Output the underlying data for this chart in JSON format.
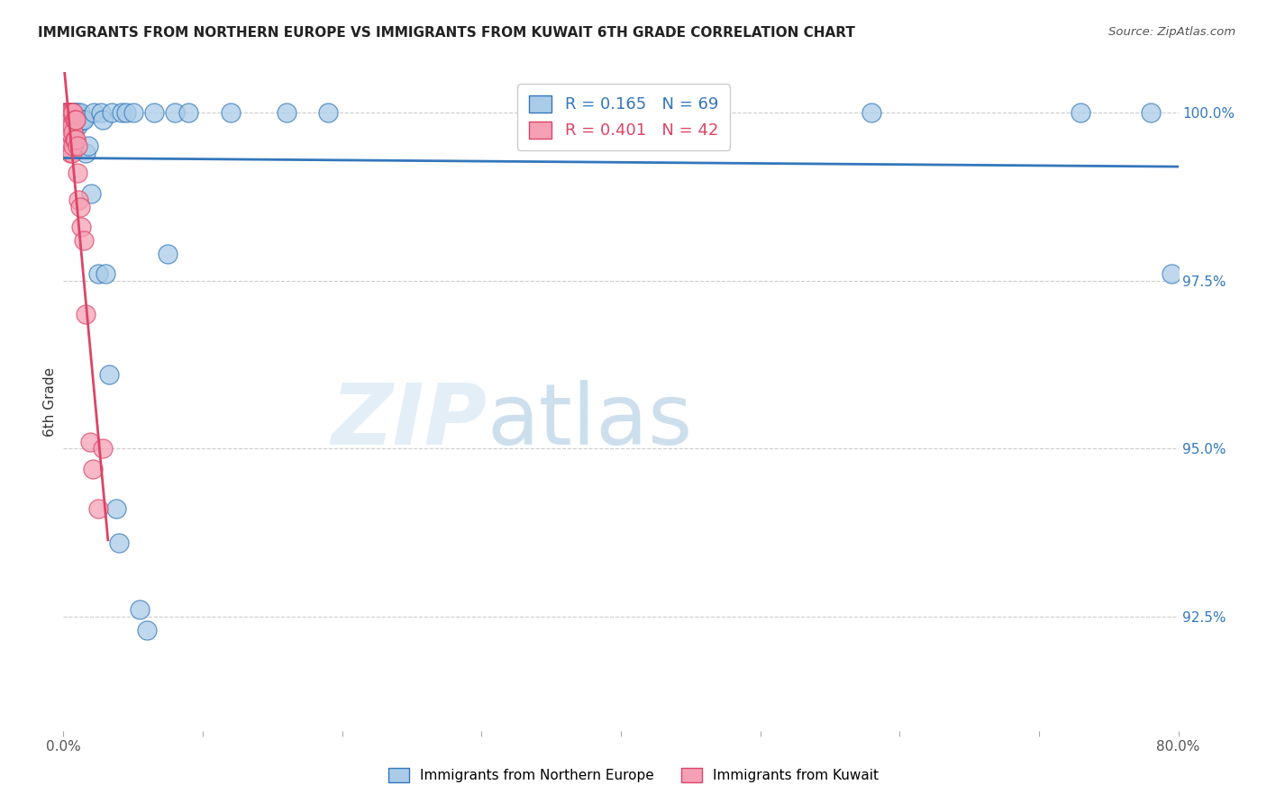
{
  "title": "IMMIGRANTS FROM NORTHERN EUROPE VS IMMIGRANTS FROM KUWAIT 6TH GRADE CORRELATION CHART",
  "source": "Source: ZipAtlas.com",
  "ylabel": "6th Grade",
  "legend_label_blue": "Immigrants from Northern Europe",
  "legend_label_pink": "Immigrants from Kuwait",
  "R_blue": 0.165,
  "N_blue": 69,
  "R_pink": 0.401,
  "N_pink": 42,
  "xmin": 0.0,
  "xmax": 0.8,
  "ymin": 0.908,
  "ymax": 1.006,
  "right_yticks": [
    0.925,
    0.95,
    0.975,
    1.0
  ],
  "right_ytick_labels": [
    "92.5%",
    "95.0%",
    "97.5%",
    "100.0%"
  ],
  "xtick_vals": [
    0.0,
    0.1,
    0.2,
    0.3,
    0.4,
    0.5,
    0.6,
    0.7,
    0.8
  ],
  "xtick_labels": [
    "0.0%",
    "",
    "",
    "",
    "",
    "",
    "",
    "",
    "80.0%"
  ],
  "color_blue": "#aacce8",
  "color_pink": "#f5a0b5",
  "trend_color_blue": "#3377bb",
  "trend_color_pink": "#dd4466",
  "background_color": "#ffffff",
  "watermark_zip": "ZIP",
  "watermark_atlas": "atlas",
  "blue_x": [
    0.001,
    0.001,
    0.002,
    0.002,
    0.003,
    0.003,
    0.003,
    0.004,
    0.004,
    0.004,
    0.004,
    0.005,
    0.005,
    0.005,
    0.005,
    0.005,
    0.005,
    0.006,
    0.006,
    0.006,
    0.006,
    0.007,
    0.007,
    0.007,
    0.007,
    0.008,
    0.008,
    0.008,
    0.009,
    0.009,
    0.009,
    0.01,
    0.01,
    0.01,
    0.011,
    0.012,
    0.012,
    0.013,
    0.014,
    0.015,
    0.016,
    0.018,
    0.02,
    0.022,
    0.025,
    0.027,
    0.028,
    0.03,
    0.033,
    0.035,
    0.038,
    0.04,
    0.042,
    0.045,
    0.05,
    0.055,
    0.06,
    0.065,
    0.075,
    0.08,
    0.09,
    0.12,
    0.16,
    0.19,
    0.45,
    0.58,
    0.73,
    0.78,
    0.795
  ],
  "blue_y": [
    1.0,
    0.999,
    1.0,
    0.999,
    1.0,
    0.999,
    0.998,
    1.0,
    0.999,
    0.999,
    0.998,
    1.0,
    0.999,
    0.999,
    0.998,
    0.997,
    0.996,
    1.0,
    0.999,
    0.998,
    0.997,
    1.0,
    0.999,
    0.999,
    0.998,
    1.0,
    0.999,
    0.998,
    1.0,
    0.999,
    0.998,
    1.0,
    0.999,
    0.998,
    0.999,
    1.0,
    0.999,
    0.999,
    0.999,
    0.999,
    0.994,
    0.995,
    0.988,
    1.0,
    0.976,
    1.0,
    0.999,
    0.976,
    0.961,
    1.0,
    0.941,
    0.936,
    1.0,
    1.0,
    1.0,
    0.926,
    0.923,
    1.0,
    0.979,
    1.0,
    1.0,
    1.0,
    1.0,
    1.0,
    1.0,
    1.0,
    1.0,
    1.0,
    0.976
  ],
  "pink_x": [
    0.001,
    0.001,
    0.001,
    0.002,
    0.002,
    0.002,
    0.002,
    0.003,
    0.003,
    0.003,
    0.003,
    0.003,
    0.004,
    0.004,
    0.004,
    0.004,
    0.005,
    0.005,
    0.005,
    0.005,
    0.005,
    0.006,
    0.006,
    0.006,
    0.007,
    0.007,
    0.007,
    0.008,
    0.008,
    0.009,
    0.009,
    0.01,
    0.01,
    0.011,
    0.012,
    0.013,
    0.015,
    0.016,
    0.019,
    0.021,
    0.025,
    0.028
  ],
  "pink_y": [
    1.0,
    0.999,
    0.998,
    1.0,
    0.999,
    0.998,
    0.997,
    1.0,
    0.999,
    0.998,
    0.997,
    0.996,
    1.0,
    0.999,
    0.998,
    0.997,
    1.0,
    0.999,
    0.998,
    0.997,
    0.994,
    1.0,
    0.998,
    0.994,
    1.0,
    0.997,
    0.995,
    0.999,
    0.996,
    0.999,
    0.996,
    0.995,
    0.991,
    0.987,
    0.986,
    0.983,
    0.981,
    0.97,
    0.951,
    0.947,
    0.941,
    0.95
  ],
  "trend_blue_x0": 0.0,
  "trend_blue_x1": 0.8,
  "trend_pink_x0": 0.0,
  "trend_pink_x1": 0.032
}
